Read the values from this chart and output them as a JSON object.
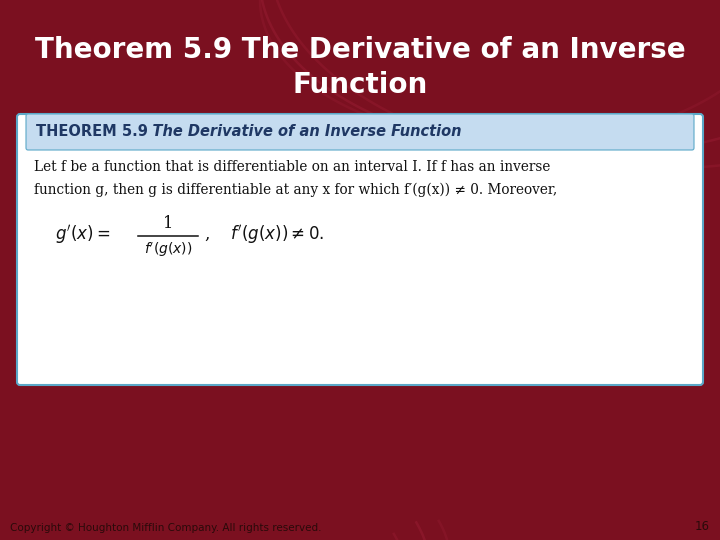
{
  "title_line1": "Theorem 5.9 The Derivative of an Inverse",
  "title_line2": "Function",
  "bg_color": "#7B1020",
  "title_text_color": "#FFFFFF",
  "box_bg": "#FFFFFF",
  "box_border": "#5BA8C8",
  "header_bg": "#C5DCF0",
  "header_color": "#1F3864",
  "body_text1": "Let f be a function that is differentiable on an interval I. If f has an inverse",
  "body_text2": "function g, then g is differentiable at any x for which f′(g(x)) ≠ 0. Moreover,",
  "copyright": "Copyright © Houghton Mifflin Company. All rights reserved.",
  "page_num": "16"
}
